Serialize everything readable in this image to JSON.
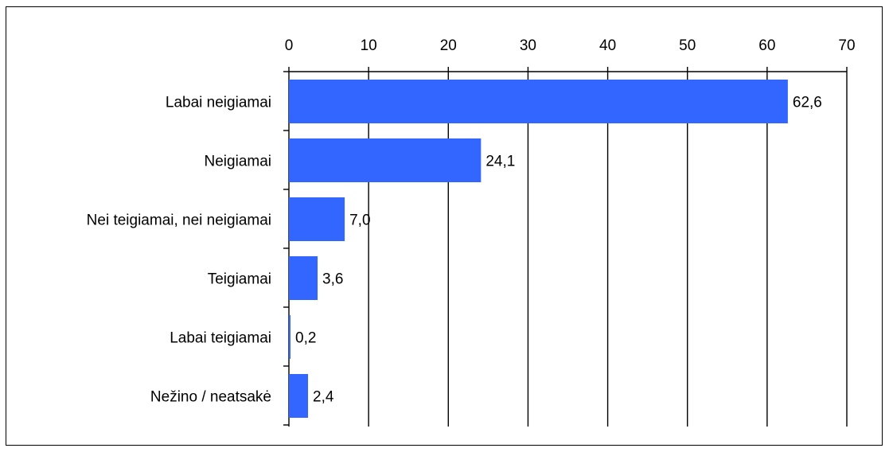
{
  "chart_data": {
    "type": "bar",
    "orientation": "horizontal",
    "categories": [
      "Labai neigiamai",
      "Neigiamai",
      "Nei teigiamai, nei neigiamai",
      "Teigiamai",
      "Labai teigiamai",
      "Nežino / neatsakė"
    ],
    "values": [
      62.6,
      24.1,
      7.0,
      3.6,
      0.2,
      2.4
    ],
    "value_labels": [
      "62,6",
      "24,1",
      "7,0",
      "3,6",
      "0,2",
      "2,4"
    ],
    "ticks": [
      "0",
      "10",
      "20",
      "30",
      "40",
      "50",
      "60",
      "70"
    ],
    "xlim": [
      0,
      70
    ],
    "x_axis_position": "top",
    "grid": "vertical",
    "legend": "none",
    "bar_color": "#3366FF"
  }
}
